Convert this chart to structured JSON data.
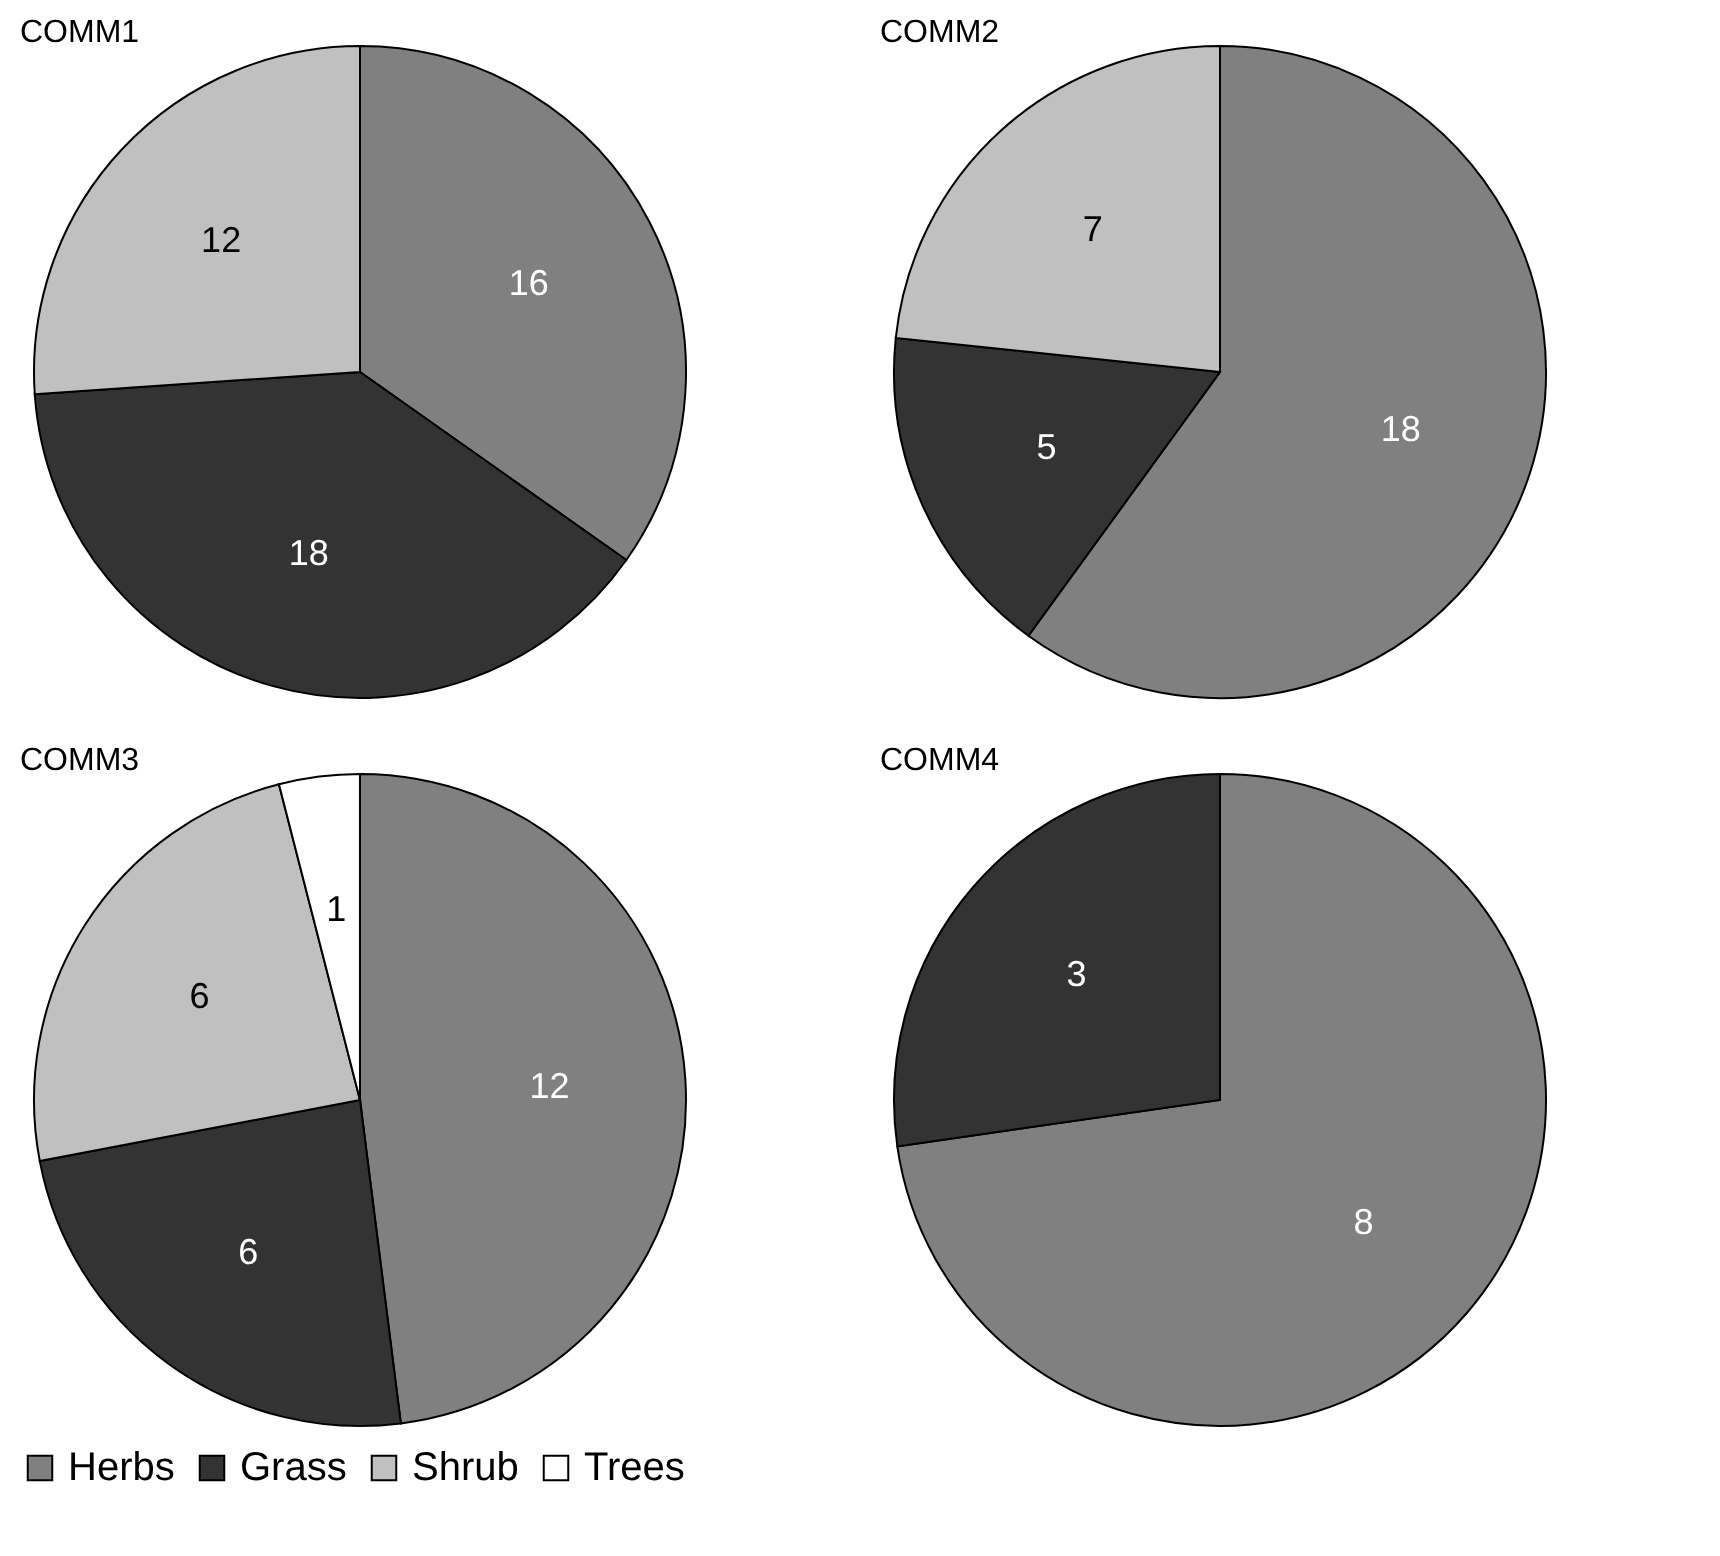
{
  "chart_data": [
    {
      "type": "pie",
      "title": "COMM1",
      "categories": [
        null,
        null,
        null
      ],
      "values": [
        16,
        18,
        12
      ],
      "colors": [
        "#808080",
        "#333333",
        "#c0c0c0"
      ],
      "data_labels": true
    },
    {
      "type": "pie",
      "title": "COMM2",
      "categories": [
        null,
        null,
        null
      ],
      "values": [
        18,
        5,
        7
      ],
      "colors": [
        "#808080",
        "#333333",
        "#c0c0c0"
      ],
      "data_labels": true
    },
    {
      "type": "pie",
      "title": "COMM3",
      "categories": [
        "Herbs",
        "Grass",
        "Shrub",
        "Trees"
      ],
      "values": [
        12,
        6,
        6,
        1
      ],
      "colors": [
        "#808080",
        "#333333",
        "#c0c0c0",
        "#ffffff"
      ],
      "data_labels": true,
      "legend": "bottom"
    },
    {
      "type": "pie",
      "title": "COMM4",
      "categories": [
        null,
        null
      ],
      "values": [
        8,
        3
      ],
      "colors": [
        "#808080",
        "#333333"
      ],
      "data_labels": true
    }
  ]
}
